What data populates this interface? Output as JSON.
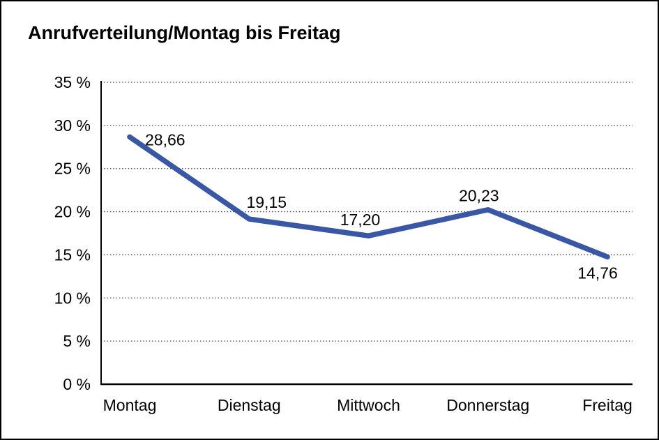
{
  "title": "Anrufverteilung/Montag bis Freitag",
  "chart_data": {
    "type": "line",
    "title": "Anrufverteilung/Montag bis Freitag",
    "categories": [
      "Montag",
      "Dienstag",
      "Mittwoch",
      "Donnerstag",
      "Freitag"
    ],
    "values": [
      28.66,
      19.15,
      17.2,
      20.23,
      14.76
    ],
    "point_labels": [
      "28,66",
      "19,15",
      "17,20",
      "20,23",
      "14,76"
    ],
    "xlabel": "",
    "ylabel": "",
    "ylim": [
      0,
      35
    ],
    "y_tick_step": 5,
    "y_ticks": [
      0,
      5,
      10,
      15,
      20,
      25,
      30,
      35
    ],
    "y_tick_labels": [
      "0 %",
      "5 %",
      "10 %",
      "15 %",
      "20 %",
      "25 %",
      "30 %",
      "35 %"
    ],
    "grid": "horizontal-dotted",
    "legend": "none",
    "line_color": "#3A57A5",
    "line_width": 7.5,
    "axis_color": "#000000",
    "grid_color": "#444444",
    "label_color": "#000000"
  }
}
